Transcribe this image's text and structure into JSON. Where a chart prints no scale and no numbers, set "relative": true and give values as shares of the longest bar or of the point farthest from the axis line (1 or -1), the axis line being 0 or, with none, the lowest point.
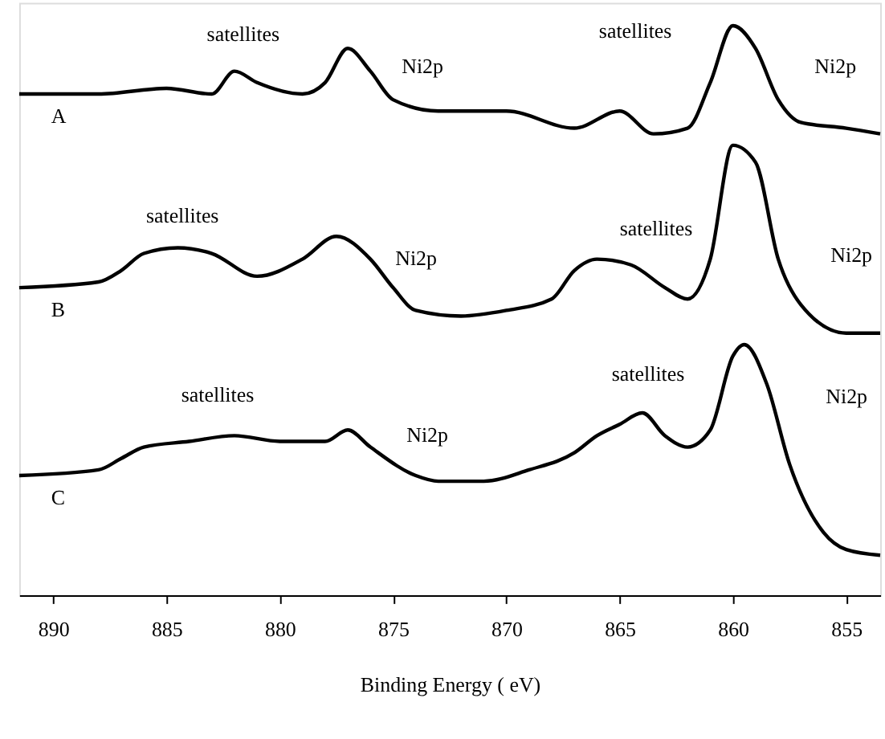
{
  "chart_data": {
    "type": "line",
    "xlabel": "Binding Energy ( eV)",
    "relative": true,
    "xlim": [
      891.5,
      853.5
    ],
    "xticks": [
      890,
      885,
      880,
      875,
      870,
      865,
      860,
      855
    ],
    "grid": false,
    "marker": "none",
    "line_style": "solid",
    "series": [
      {
        "name": "A",
        "color": "#000000",
        "x": [
          891.5,
          888,
          885,
          883,
          882,
          881,
          879,
          878,
          877,
          876,
          875,
          873,
          870,
          867,
          865,
          863.5,
          862,
          861,
          860,
          859,
          858,
          857,
          855,
          853.5
        ],
        "values": [
          0.88,
          0.88,
          0.89,
          0.88,
          0.92,
          0.9,
          0.88,
          0.9,
          0.96,
          0.92,
          0.87,
          0.85,
          0.85,
          0.82,
          0.85,
          0.81,
          0.82,
          0.9,
          1.0,
          0.96,
          0.87,
          0.83,
          0.82,
          0.81
        ]
      },
      {
        "name": "B",
        "color": "#000000",
        "x": [
          891.5,
          888,
          887,
          886,
          884.5,
          883,
          881,
          879,
          877.5,
          876,
          875,
          874,
          872,
          870,
          868,
          867,
          866,
          864.5,
          863,
          862,
          861,
          860,
          859,
          858,
          857,
          855,
          853.5
        ],
        "values": [
          0.54,
          0.55,
          0.57,
          0.6,
          0.61,
          0.6,
          0.56,
          0.59,
          0.63,
          0.59,
          0.54,
          0.5,
          0.49,
          0.5,
          0.52,
          0.57,
          0.59,
          0.58,
          0.54,
          0.52,
          0.59,
          0.79,
          0.76,
          0.59,
          0.51,
          0.46,
          0.46
        ]
      },
      {
        "name": "C",
        "color": "#000000",
        "x": [
          891.5,
          888,
          887,
          886,
          884,
          882,
          880,
          878,
          877,
          876,
          874,
          873,
          871,
          869,
          867,
          866,
          865,
          864,
          863,
          862,
          861,
          860,
          859.5,
          858.5,
          857.5,
          856,
          855,
          853.5
        ],
        "values": [
          0.21,
          0.22,
          0.24,
          0.26,
          0.27,
          0.28,
          0.27,
          0.27,
          0.29,
          0.26,
          0.21,
          0.2,
          0.2,
          0.22,
          0.25,
          0.28,
          0.3,
          0.32,
          0.28,
          0.26,
          0.29,
          0.42,
          0.44,
          0.37,
          0.23,
          0.11,
          0.08,
          0.07
        ]
      }
    ],
    "annotations": [
      "satellites",
      "Ni2p",
      "satellites",
      "Ni2p",
      "satellites",
      "Ni2p",
      "satellites",
      "Ni2p",
      "satellites",
      "Ni2p",
      "satellites",
      "Ni2p"
    ]
  }
}
